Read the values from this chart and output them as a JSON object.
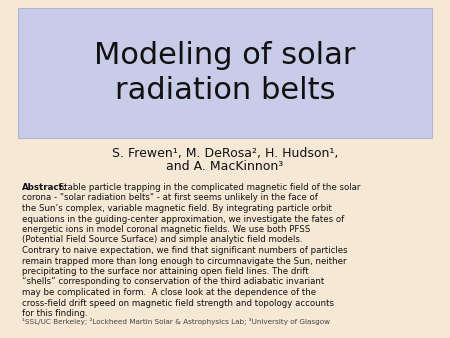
{
  "title": "Modeling of solar\nradiation belts",
  "authors_line1": "S. Frewen¹, M. DeRosa², H. Hudson¹,",
  "authors_line2": "and A. MacKinnon³",
  "abstract_bold": "Abstract:",
  "abstract_lines": [
    "Abstract: Stable particle trapping in the complicated magnetic field of the solar",
    "corona - \"solar radiation belts\" - at first seems unlikely in the face of",
    "the Sun’s complex, variable magnetic field. By integrating particle orbit",
    "equations in the guiding-center approximation, we investigate the fates of",
    "energetic ions in model coronal magnetic fields. We use both PFSS",
    "(Potential Field Source Surface) and simple analytic field models.",
    "Contrary to naive expectation, we find that significant numbers of particles",
    "remain trapped more than long enough to circumnavigate the Sun, neither",
    "precipitating to the surface nor attaining open field lines. The drift",
    "“shells” corresponding to conservation of the third adiabatic invariant",
    "may be complicated in form.  A close look at the dependence of the",
    "cross-field drift speed on magnetic field strength and topology accounts",
    "for this finding."
  ],
  "affiliations": "¹SSL/UC Berkeley; ²Lockheed Martin Solar & Astrophysics Lab; ³University of Glasgow",
  "bg_color": "#f5e8d5",
  "title_box_color": "#c8cce8",
  "title_box_edge": "#b0b4d8",
  "title_color": "#111111",
  "authors_color": "#111111",
  "abstract_color": "#111111",
  "affil_color": "#444444",
  "title_fontsize": 22,
  "authors_fontsize": 9,
  "abstract_fontsize": 6.2,
  "affil_fontsize": 5.2
}
